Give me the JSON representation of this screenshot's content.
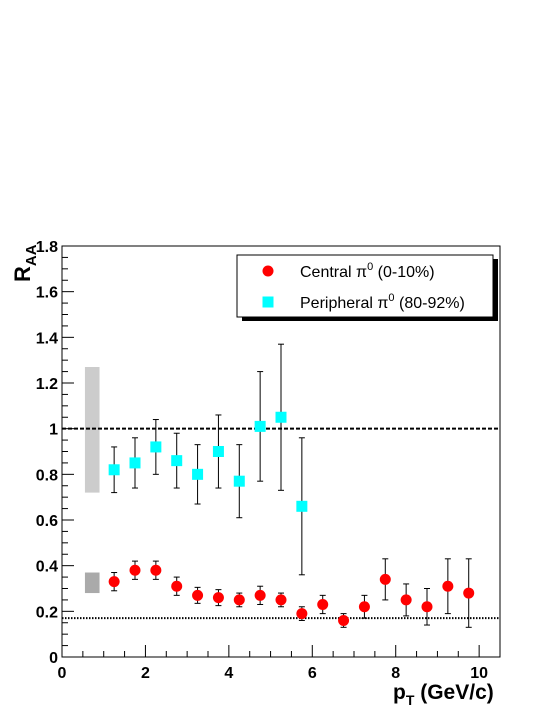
{
  "chart_data": {
    "type": "scatter",
    "xlabel_main": "p",
    "xlabel_sub": "T",
    "xlabel_rest": " (GeV/c)",
    "ylabel_main": "R",
    "ylabel_sub": "AA",
    "xlim": [
      0,
      10.5
    ],
    "ylim": [
      0,
      1.8
    ],
    "x_ticks": [
      0,
      2,
      4,
      6,
      8,
      10
    ],
    "y_ticks": [
      0,
      0.2,
      0.4,
      0.6,
      0.8,
      1,
      1.2,
      1.4,
      1.6,
      1.8
    ],
    "x_tick_labels": [
      "0",
      "2",
      "4",
      "6",
      "8",
      "10"
    ],
    "y_tick_labels": [
      "0",
      "0.2",
      "0.4",
      "0.6",
      "0.8",
      "1",
      "1.2",
      "1.4",
      "1.6",
      "1.8"
    ],
    "reference_lines": [
      {
        "y": 1.0,
        "style": "dashed"
      },
      {
        "y": 0.17,
        "style": "dotted"
      }
    ],
    "systematic_bands": [
      {
        "series": "Peripheral",
        "y_low": 0.72,
        "y_high": 1.27,
        "color": "#cccccc"
      },
      {
        "series": "Central",
        "y_low": 0.28,
        "y_high": 0.37,
        "color": "#aaaaaa"
      }
    ],
    "legend_position": "top-right",
    "series": [
      {
        "name_prefix": "Central π",
        "name_sup": "0",
        "name_suffix": " (0-10%)",
        "marker": "circle",
        "color": "#ff0000",
        "points": [
          {
            "x": 1.25,
            "y": 0.33,
            "err": 0.04
          },
          {
            "x": 1.75,
            "y": 0.38,
            "err": 0.04
          },
          {
            "x": 2.25,
            "y": 0.38,
            "err": 0.04
          },
          {
            "x": 2.75,
            "y": 0.31,
            "err": 0.04
          },
          {
            "x": 3.25,
            "y": 0.27,
            "err": 0.035
          },
          {
            "x": 3.75,
            "y": 0.26,
            "err": 0.035
          },
          {
            "x": 4.25,
            "y": 0.25,
            "err": 0.03
          },
          {
            "x": 4.75,
            "y": 0.27,
            "err": 0.04
          },
          {
            "x": 5.25,
            "y": 0.25,
            "err": 0.03
          },
          {
            "x": 5.75,
            "y": 0.19,
            "err": 0.03
          },
          {
            "x": 6.25,
            "y": 0.23,
            "err": 0.04
          },
          {
            "x": 6.75,
            "y": 0.16,
            "err": 0.03
          },
          {
            "x": 7.25,
            "y": 0.22,
            "err": 0.05
          },
          {
            "x": 7.75,
            "y": 0.34,
            "err": 0.09
          },
          {
            "x": 8.25,
            "y": 0.25,
            "err": 0.07
          },
          {
            "x": 8.75,
            "y": 0.22,
            "err": 0.08
          },
          {
            "x": 9.25,
            "y": 0.31,
            "err": 0.12
          },
          {
            "x": 9.75,
            "y": 0.28,
            "err": 0.15
          }
        ]
      },
      {
        "name_prefix": "Peripheral π",
        "name_sup": "0",
        "name_suffix": " (80-92%)",
        "marker": "square",
        "color": "#00ffff",
        "points": [
          {
            "x": 1.25,
            "y": 0.82,
            "err": 0.1
          },
          {
            "x": 1.75,
            "y": 0.85,
            "err": 0.11
          },
          {
            "x": 2.25,
            "y": 0.92,
            "err": 0.12
          },
          {
            "x": 2.75,
            "y": 0.86,
            "err": 0.12
          },
          {
            "x": 3.25,
            "y": 0.8,
            "err": 0.13
          },
          {
            "x": 3.75,
            "y": 0.9,
            "err": 0.16
          },
          {
            "x": 4.25,
            "y": 0.77,
            "err": 0.16
          },
          {
            "x": 4.75,
            "y": 1.01,
            "err": 0.24
          },
          {
            "x": 5.25,
            "y": 1.05,
            "err": 0.32
          },
          {
            "x": 5.75,
            "y": 0.66,
            "err": 0.3
          }
        ]
      }
    ]
  }
}
